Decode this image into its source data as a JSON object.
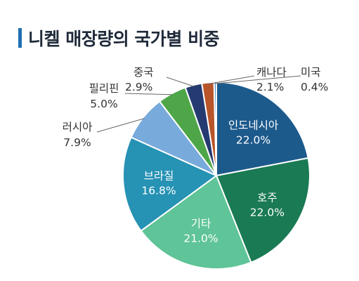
{
  "header": {
    "title": "니켈 매장량의 국가별 비중"
  },
  "colors": {
    "title_bar": "#1f6fb2"
  },
  "chart_data": {
    "type": "pie",
    "title": "니켈 매장량의 국가별 비중",
    "unit": "%",
    "slices": [
      {
        "label": "인도네시아",
        "value_label": "22.0%",
        "value": 22.0,
        "color": "#1d5a8c",
        "label_pos": "inside"
      },
      {
        "label": "호주",
        "value_label": "22.0%",
        "value": 22.0,
        "color": "#1a7a54",
        "label_pos": "inside"
      },
      {
        "label": "기타",
        "value_label": "21.0%",
        "value": 21.0,
        "color": "#5fc497",
        "label_pos": "inside"
      },
      {
        "label": "브라질",
        "value_label": "16.8%",
        "value": 16.8,
        "color": "#2692b4",
        "label_pos": "inside"
      },
      {
        "label": "러시아",
        "value_label": "7.9%",
        "value": 7.9,
        "color": "#78aadc",
        "label_pos": "outside"
      },
      {
        "label": "필리핀",
        "value_label": "5.0%",
        "value": 5.0,
        "color": "#4ea648",
        "label_pos": "outside"
      },
      {
        "label": "중국",
        "value_label": "2.9%",
        "value": 2.9,
        "color": "#243a70",
        "label_pos": "outside"
      },
      {
        "label": "캐나다",
        "value_label": "2.1%",
        "value": 2.1,
        "color": "#b8552a",
        "label_pos": "outside"
      },
      {
        "label": "미국",
        "value_label": "0.4%",
        "value": 0.4,
        "color": "#4e8fc4",
        "label_pos": "outside"
      }
    ]
  }
}
